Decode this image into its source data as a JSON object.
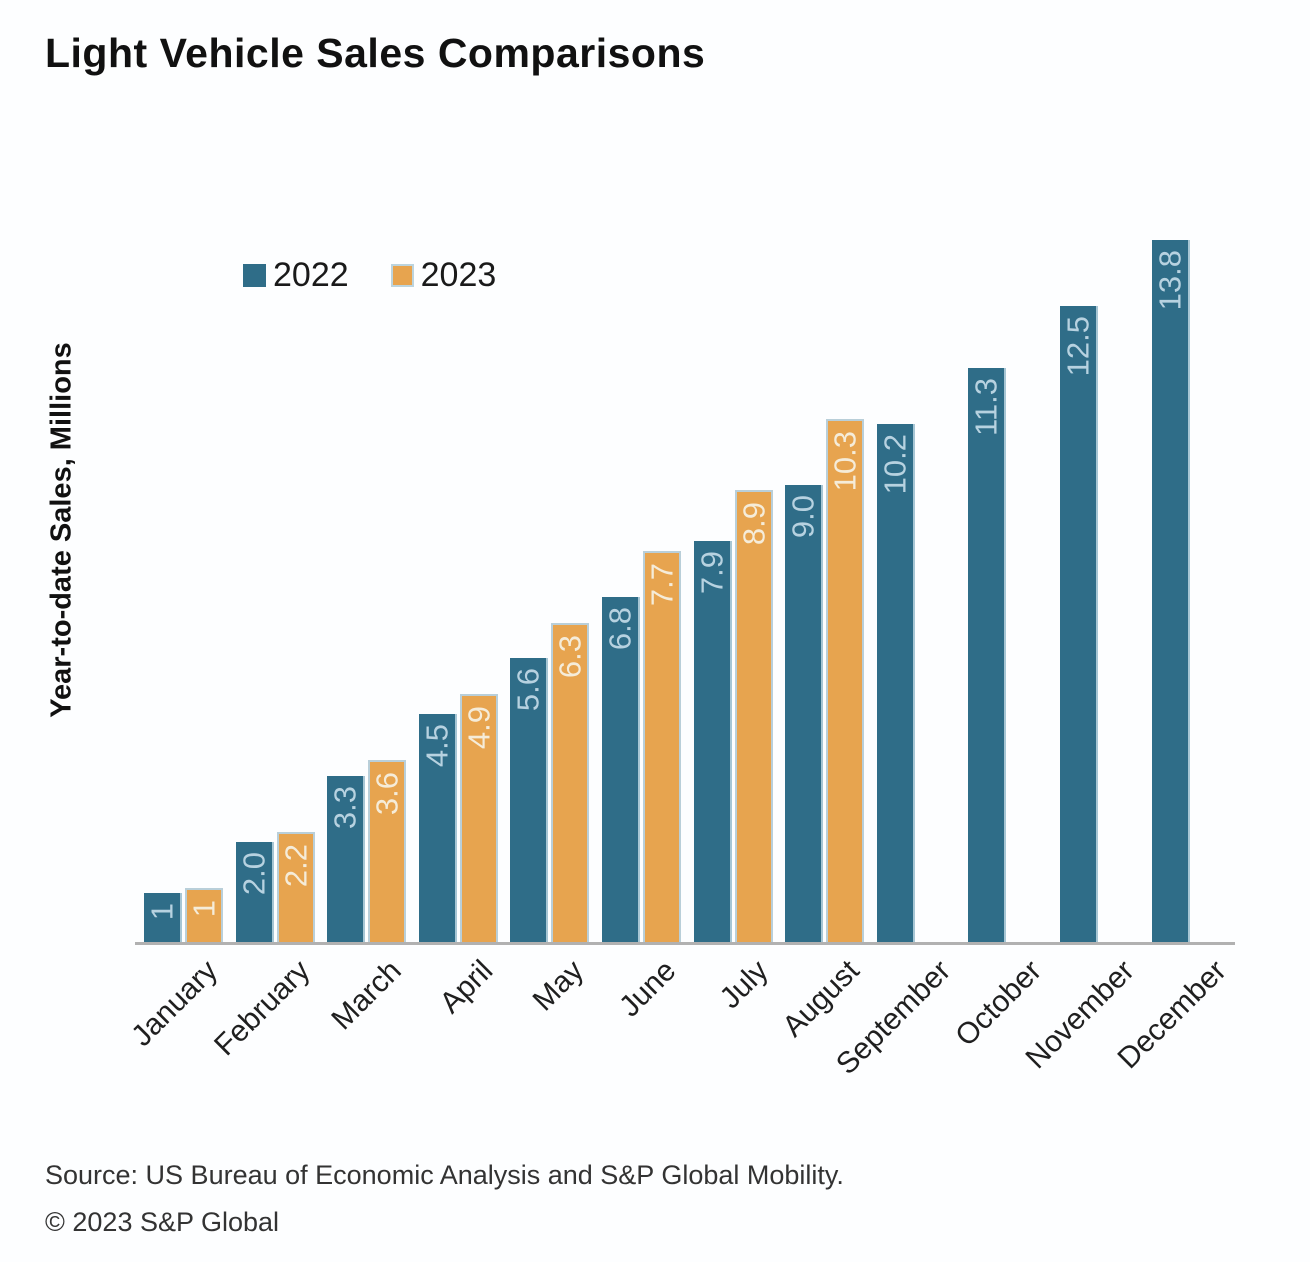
{
  "chart_data": {
    "type": "bar",
    "title": "Light Vehicle Sales Comparisons",
    "ylabel": "Year-to-date Sales, Millions",
    "xlabel": "",
    "ylim": [
      0,
      14
    ],
    "grid": false,
    "legend_position": "top-left-inside",
    "categories": [
      "January",
      "February",
      "March",
      "April",
      "May",
      "June",
      "July",
      "August",
      "September",
      "October",
      "November",
      "December"
    ],
    "series": [
      {
        "name": "2022",
        "color": "#2f6d88",
        "label_color": "#b7d2e0",
        "values": [
          1.0,
          2.0,
          3.3,
          4.5,
          5.6,
          6.8,
          7.9,
          9.0,
          10.2,
          11.3,
          12.5,
          13.8
        ],
        "labels": [
          "1",
          "2.0",
          "3.3",
          "4.5",
          "5.6",
          "6.8",
          "7.9",
          "9.0",
          "10.2",
          "11.3",
          "12.5",
          "13.8"
        ]
      },
      {
        "name": "2023",
        "color": "#e7a44f",
        "label_color": "#f5ecd9",
        "values": [
          1.1,
          2.2,
          3.6,
          4.9,
          6.3,
          7.7,
          8.9,
          10.3,
          null,
          null,
          null,
          null
        ],
        "labels": [
          "1",
          "2.2",
          "3.6",
          "4.9",
          "6.3",
          "7.7",
          "8.9",
          "10.3",
          null,
          null,
          null,
          null
        ]
      }
    ]
  },
  "source": {
    "line1": "Source: US Bureau of Economic Analysis and S&P Global Mobility.",
    "line2": "© 2023 S&P Global"
  }
}
